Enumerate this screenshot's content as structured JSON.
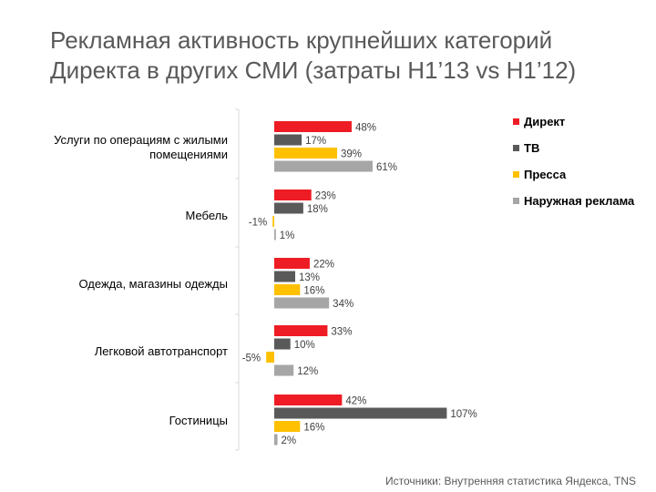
{
  "title": {
    "line1": "Рекламная активность крупнейших категорий",
    "line2": "Директа в других СМИ (затраты H1’13 vs H1’12)"
  },
  "source": "Источники: Внутренняя статистика Яндекса, TNS",
  "colors": {
    "Директ": "#ee1c24",
    "ТВ": "#595959",
    "Пресса": "#ffc000",
    "Наружная реклама": "#a6a6a6",
    "axis": "#d9d9d9"
  },
  "chart_data": {
    "type": "bar",
    "orientation": "horizontal",
    "title": "Рекламная активность крупнейших категорий Директа в других СМИ (затраты H1’13 vs H1’12)",
    "unit": "%",
    "categories": [
      [
        "Услуги по операциям с жилыми",
        "помещениями"
      ],
      [
        "Мебель"
      ],
      [
        "Одежда, магазины одежды"
      ],
      [
        "Легковой автотранспорт"
      ],
      [
        "Гостиницы"
      ]
    ],
    "series": [
      {
        "name": "Директ",
        "values": [
          48,
          23,
          22,
          33,
          42
        ]
      },
      {
        "name": "ТВ",
        "values": [
          17,
          18,
          13,
          10,
          107
        ]
      },
      {
        "name": "Пресса",
        "values": [
          39,
          -1,
          16,
          -5,
          16
        ]
      },
      {
        "name": "Наружная реклама",
        "values": [
          61,
          1,
          34,
          12,
          2
        ]
      }
    ],
    "legend": [
      "Директ",
      "ТВ",
      "Пресса",
      "Наружная реклама"
    ],
    "legend_position": "top-right",
    "xlim": [
      -10,
      110
    ],
    "grid": false
  }
}
